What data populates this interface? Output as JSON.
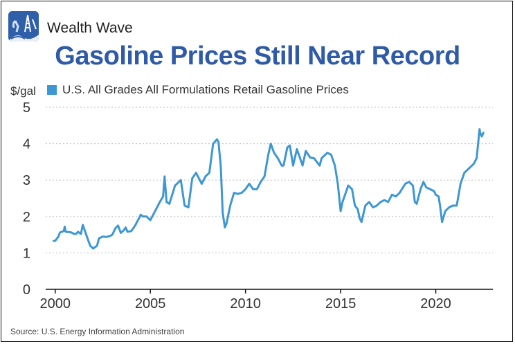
{
  "header": {
    "brand": "Wealth Wave",
    "logo_icon": "oil-derrick-icon"
  },
  "chart_data": {
    "type": "line",
    "title": "Gasoline Prices Still Near Record",
    "ylabel": "$/gal",
    "xlabel": "",
    "ylim": [
      0,
      5
    ],
    "xlim": [
      1999.5,
      2023
    ],
    "yticks": [
      0,
      1,
      2,
      3,
      4,
      5
    ],
    "xticks": [
      2000,
      2005,
      2010,
      2015,
      2020
    ],
    "grid": "horizontal dashed",
    "legend_position": "top-left",
    "series": [
      {
        "name": "U.S. All Grades All Formulations Retail Gasoline Prices",
        "color": "#3d97d3",
        "x": [
          1999.92,
          2000.0,
          2000.17,
          2000.25,
          2000.45,
          2000.5,
          2000.55,
          2000.75,
          2000.85,
          2001.0,
          2001.1,
          2001.2,
          2001.35,
          2001.45,
          2001.6,
          2001.75,
          2001.85,
          2002.0,
          2002.2,
          2002.3,
          2002.5,
          2002.7,
          2002.9,
          2003.0,
          2003.17,
          2003.3,
          2003.45,
          2003.6,
          2003.7,
          2003.8,
          2004.0,
          2004.2,
          2004.4,
          2004.5,
          2004.6,
          2004.8,
          2005.0,
          2005.25,
          2005.5,
          2005.67,
          2005.75,
          2005.85,
          2006.0,
          2006.3,
          2006.6,
          2006.8,
          2007.0,
          2007.2,
          2007.4,
          2007.7,
          2007.9,
          2008.1,
          2008.3,
          2008.5,
          2008.58,
          2008.7,
          2008.8,
          2008.92,
          2009.0,
          2009.2,
          2009.4,
          2009.6,
          2009.8,
          2010.0,
          2010.2,
          2010.4,
          2010.6,
          2010.8,
          2011.0,
          2011.2,
          2011.33,
          2011.5,
          2011.7,
          2011.9,
          2012.0,
          2012.2,
          2012.33,
          2012.5,
          2012.7,
          2012.9,
          2013.0,
          2013.17,
          2013.4,
          2013.6,
          2013.9,
          2014.0,
          2014.3,
          2014.5,
          2014.7,
          2014.85,
          2015.0,
          2015.1,
          2015.2,
          2015.4,
          2015.6,
          2015.75,
          2015.9,
          2016.0,
          2016.1,
          2016.3,
          2016.5,
          2016.7,
          2016.9,
          2017.1,
          2017.3,
          2017.5,
          2017.7,
          2017.9,
          2018.1,
          2018.4,
          2018.6,
          2018.8,
          2018.9,
          2019.0,
          2019.2,
          2019.35,
          2019.5,
          2019.7,
          2019.9,
          2020.0,
          2020.15,
          2020.25,
          2020.33,
          2020.5,
          2020.7,
          2020.9,
          2021.1,
          2021.3,
          2021.5,
          2021.7,
          2021.9,
          2022.0,
          2022.15,
          2022.3,
          2022.33,
          2022.42,
          2022.5
        ],
        "values": [
          1.33,
          1.33,
          1.45,
          1.56,
          1.6,
          1.72,
          1.58,
          1.57,
          1.56,
          1.52,
          1.52,
          1.58,
          1.52,
          1.77,
          1.55,
          1.32,
          1.19,
          1.12,
          1.2,
          1.4,
          1.45,
          1.44,
          1.47,
          1.5,
          1.68,
          1.75,
          1.55,
          1.62,
          1.7,
          1.58,
          1.6,
          1.75,
          1.95,
          2.05,
          2.0,
          2.0,
          1.9,
          2.15,
          2.4,
          2.55,
          3.1,
          2.4,
          2.35,
          2.85,
          3.0,
          2.3,
          2.25,
          3.05,
          3.2,
          2.9,
          3.1,
          3.2,
          4.0,
          4.12,
          4.05,
          3.4,
          2.1,
          1.7,
          1.8,
          2.3,
          2.65,
          2.62,
          2.65,
          2.75,
          2.9,
          2.75,
          2.75,
          2.95,
          3.1,
          3.7,
          4.0,
          3.75,
          3.6,
          3.4,
          3.4,
          3.9,
          3.95,
          3.4,
          3.85,
          3.55,
          3.4,
          3.8,
          3.62,
          3.6,
          3.4,
          3.6,
          3.75,
          3.7,
          3.4,
          2.9,
          2.15,
          2.4,
          2.55,
          2.85,
          2.75,
          2.3,
          2.2,
          1.95,
          1.85,
          2.3,
          2.4,
          2.25,
          2.3,
          2.4,
          2.45,
          2.4,
          2.6,
          2.55,
          2.65,
          2.9,
          2.95,
          2.85,
          2.4,
          2.35,
          2.75,
          2.95,
          2.8,
          2.75,
          2.7,
          2.6,
          2.55,
          2.2,
          1.85,
          2.15,
          2.25,
          2.3,
          2.3,
          2.9,
          3.2,
          3.3,
          3.4,
          3.45,
          3.6,
          4.4,
          4.3,
          4.2,
          4.3
        ]
      }
    ]
  },
  "footer": {
    "source": "Source: U.S. Energy Information Administration"
  }
}
